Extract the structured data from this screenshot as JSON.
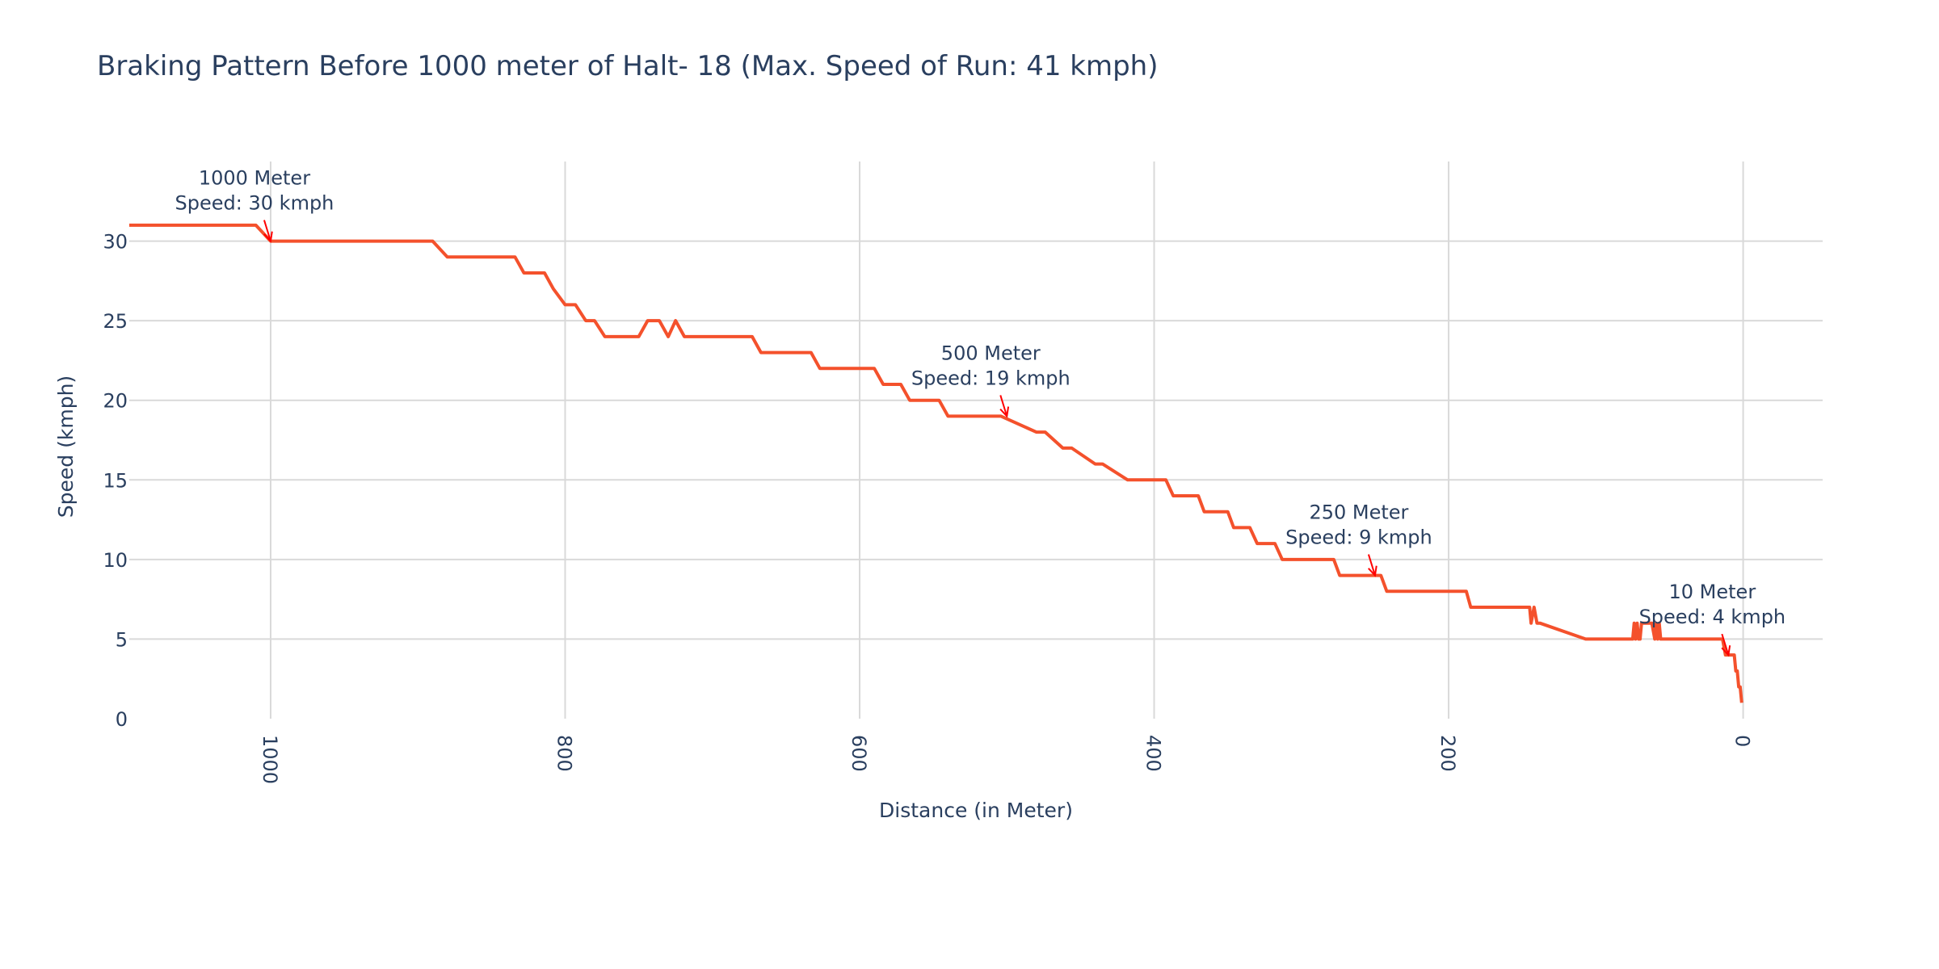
{
  "chart_data": {
    "type": "line",
    "title": "Braking Pattern Before 1000 meter of Halt- 18 (Max. Speed of Run: 41 kmph)",
    "xlabel": "Distance (in Meter)",
    "ylabel": "Speed (kmph)",
    "xlim": [
      1096,
      -54
    ],
    "ylim": [
      0,
      35
    ],
    "x_reversed": true,
    "grid": true,
    "x_ticks": [
      1000,
      800,
      600,
      400,
      200,
      0
    ],
    "y_ticks": [
      0,
      5,
      10,
      15,
      20,
      25,
      30
    ],
    "line_color": "#f4512c",
    "annotation_color": "#ff0000",
    "series": [
      {
        "x": [
          1096,
          1010,
          1000,
          890,
          880,
          834,
          828,
          814,
          808,
          800,
          793,
          786,
          780,
          773,
          767,
          750,
          744,
          736,
          730,
          725,
          719,
          673,
          667,
          633,
          627,
          590,
          584,
          572,
          566,
          546,
          540,
          510,
          504,
          480,
          474,
          462,
          456,
          440,
          435,
          418,
          413,
          392,
          387,
          370,
          366,
          350,
          346,
          335,
          330,
          318,
          313,
          278,
          274,
          246,
          242,
          188,
          185,
          145,
          144,
          142,
          140,
          138,
          107,
          106,
          75,
          74,
          73,
          72,
          71,
          70,
          69,
          68,
          66,
          62,
          60,
          59,
          58,
          57,
          56,
          55,
          54,
          14,
          12,
          10,
          6,
          5,
          4,
          3,
          2,
          1
        ],
        "y": [
          31,
          31,
          30,
          30,
          29,
          29,
          28,
          28,
          27,
          26,
          26,
          25,
          25,
          24,
          24,
          24,
          25,
          25,
          24,
          25,
          24,
          24,
          23,
          23,
          22,
          22,
          21,
          21,
          20,
          20,
          19,
          19,
          19,
          18,
          18,
          17,
          17,
          16,
          16,
          15,
          15,
          15,
          14,
          14,
          13,
          13,
          12,
          12,
          11,
          11,
          10,
          10,
          9,
          9,
          8,
          8,
          7,
          7,
          6,
          7,
          6,
          6,
          5,
          5,
          5,
          6,
          5,
          6,
          5,
          5,
          6,
          6,
          6,
          6,
          5,
          6,
          5,
          6,
          5,
          5,
          5,
          5,
          4,
          4,
          4,
          3,
          3,
          2,
          2,
          1
        ]
      }
    ],
    "annotations": [
      {
        "x": 1000,
        "y": 30,
        "line1": "1000 Meter",
        "line2": "Speed: 30 kmph"
      },
      {
        "x": 500,
        "y": 19,
        "line1": "500 Meter",
        "line2": "Speed: 19 kmph"
      },
      {
        "x": 250,
        "y": 9,
        "line1": "250 Meter",
        "line2": "Speed: 9 kmph"
      },
      {
        "x": 10,
        "y": 4,
        "line1": "10 Meter",
        "line2": "Speed: 4 kmph"
      }
    ]
  }
}
